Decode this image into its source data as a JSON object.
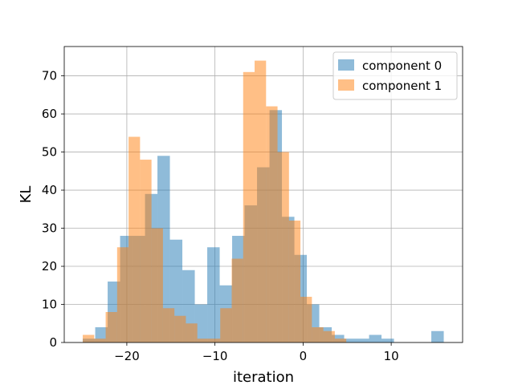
{
  "chart_data": {
    "type": "bar",
    "title": "",
    "xlabel": "iteration",
    "ylabel": "KL",
    "xlim": [
      -27.1,
      18.1
    ],
    "ylim": [
      0,
      77.7
    ],
    "xticks": [
      -20,
      -10,
      0,
      10
    ],
    "xtick_labels": [
      "−20",
      "−10",
      "0",
      "10"
    ],
    "yticks": [
      0,
      10,
      20,
      30,
      40,
      50,
      60,
      70
    ],
    "ytick_labels": [
      "0",
      "10",
      "20",
      "30",
      "40",
      "50",
      "60",
      "70"
    ],
    "grid": true,
    "legend_position": "top-right",
    "series": [
      {
        "name": "component 0",
        "color": "#1f77b4",
        "opacity": 0.5,
        "bins_start": -25.0,
        "bin_width": 1.4125,
        "counts": [
          1,
          4,
          16,
          28,
          28,
          39,
          49,
          27,
          19,
          10,
          25,
          15,
          28,
          36,
          46,
          61,
          33,
          23,
          10,
          4,
          2,
          1,
          1,
          2,
          1,
          0,
          0,
          0,
          3
        ]
      },
      {
        "name": "component 1",
        "color": "#ff7f0e",
        "opacity": 0.5,
        "bins_start": -25.0,
        "bin_width": 1.3,
        "counts": [
          2,
          1,
          8,
          25,
          54,
          48,
          30,
          9,
          7,
          5,
          1,
          1,
          9,
          22,
          71,
          74,
          62,
          50,
          32,
          12,
          4,
          3,
          1
        ]
      }
    ]
  }
}
